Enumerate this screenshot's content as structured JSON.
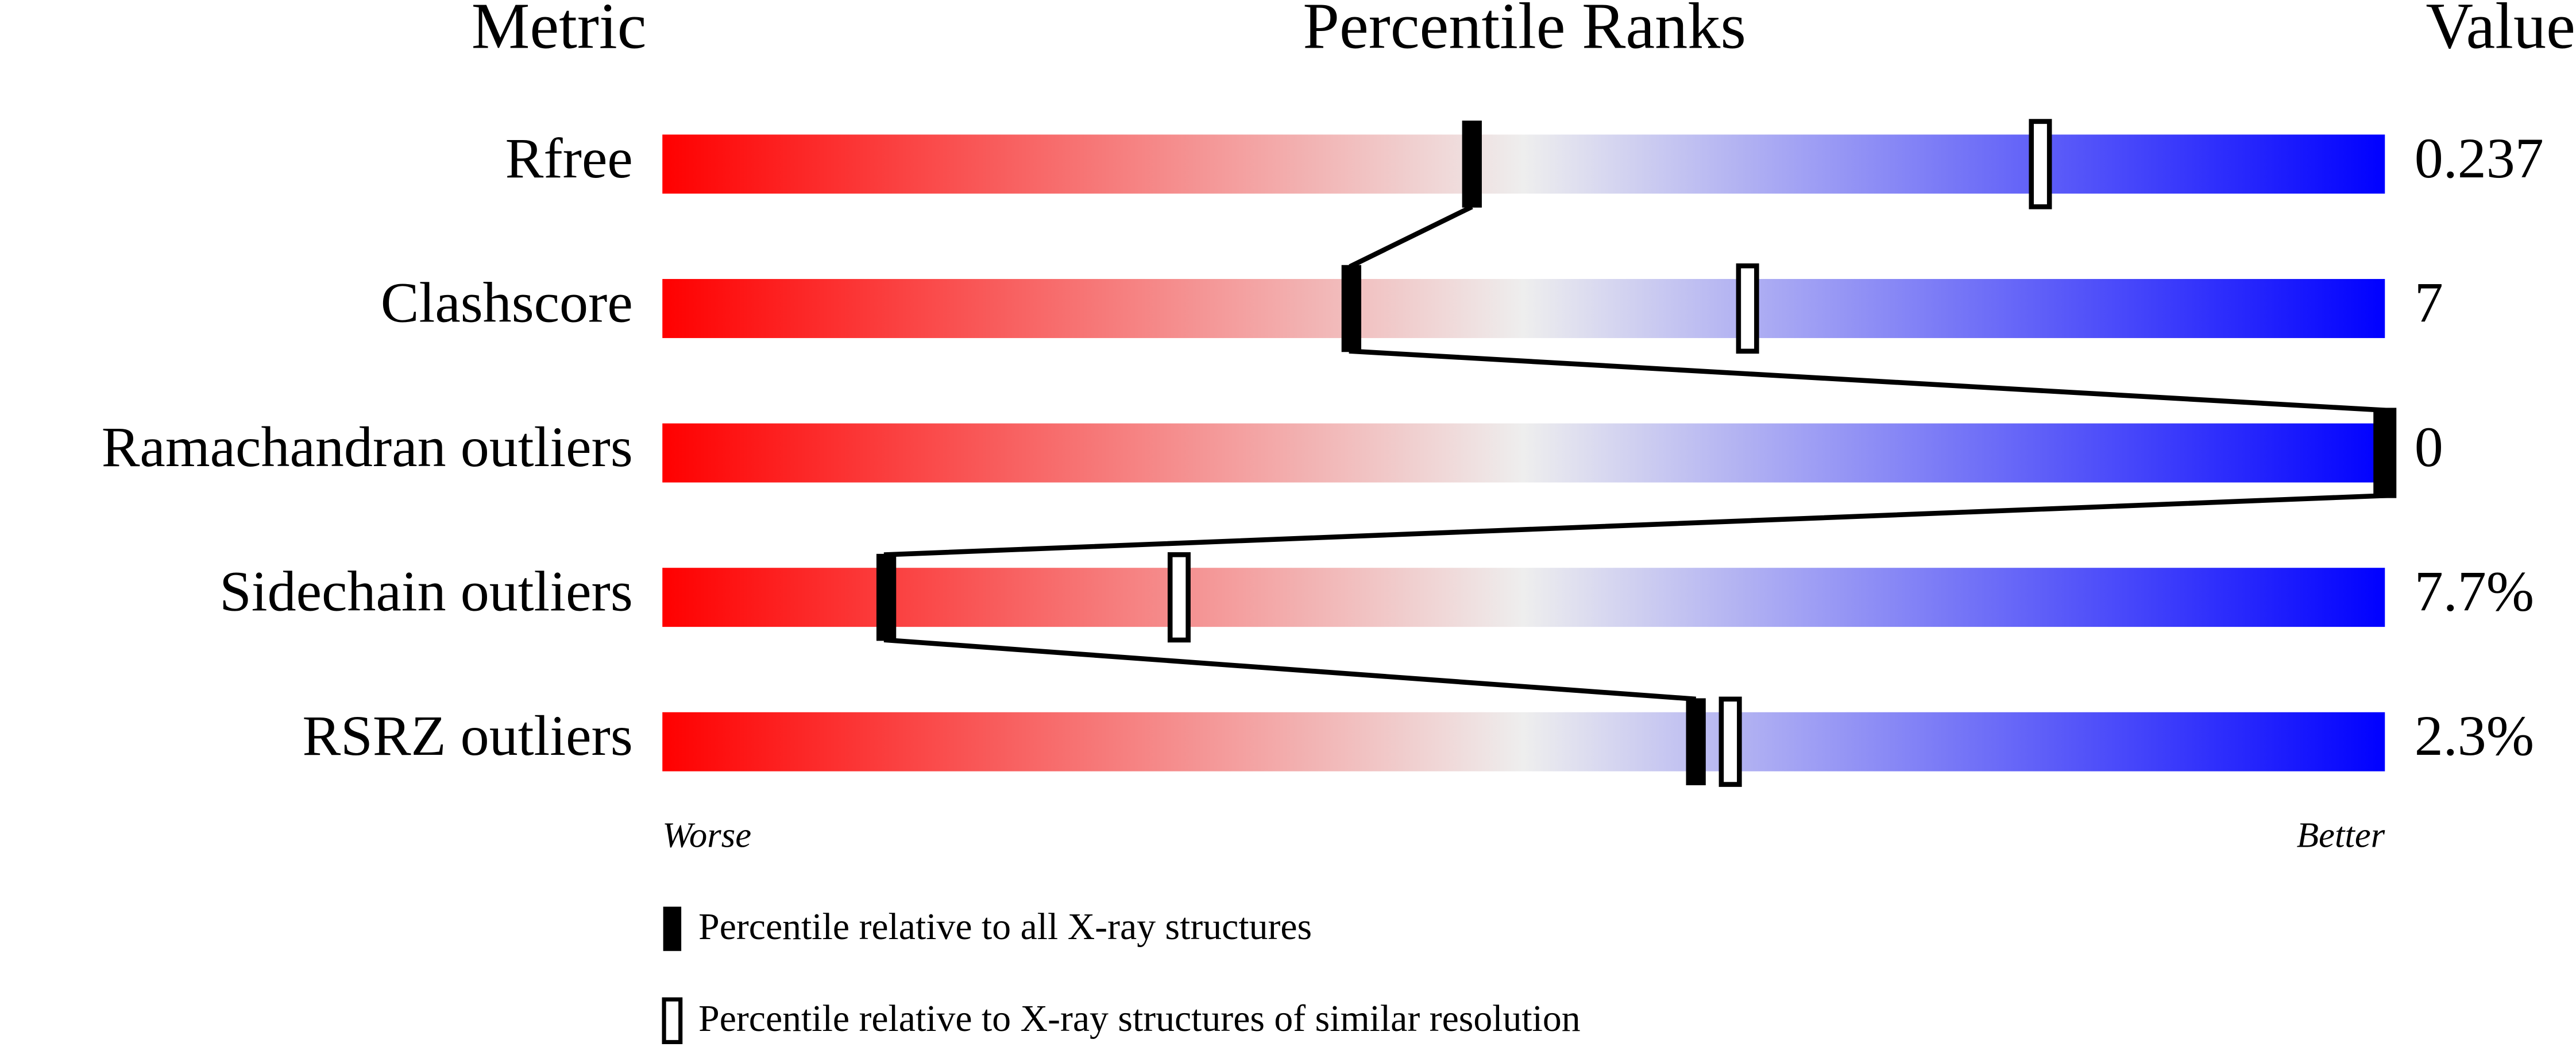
{
  "chart_data": {
    "type": "slider",
    "headers": [
      "Metric",
      "Percentile Ranks",
      "Value"
    ],
    "categories": [
      "Rfree",
      "Clashscore",
      "Ramachandran outliers",
      "Sidechain outliers",
      "RSRZ outliers"
    ],
    "metric_values": [
      "0.237",
      "7",
      "0",
      "7.7%",
      "2.3%"
    ],
    "xlim": [
      0,
      100
    ],
    "x_end_labels": [
      "Worse",
      "Better"
    ],
    "gradient": [
      "#ff0000",
      "#eeeeee",
      "#0000ff"
    ],
    "series": [
      {
        "name": "Percentile relative to all X-ray structures",
        "color": "#000000",
        "filled": true,
        "values": [
          47,
          40,
          100,
          13,
          60
        ]
      },
      {
        "name": "Percentile relative to X-ray structures of similar resolution",
        "color": "#000000",
        "filled": false,
        "values": [
          80,
          63,
          100,
          30,
          62
        ]
      }
    ]
  }
}
